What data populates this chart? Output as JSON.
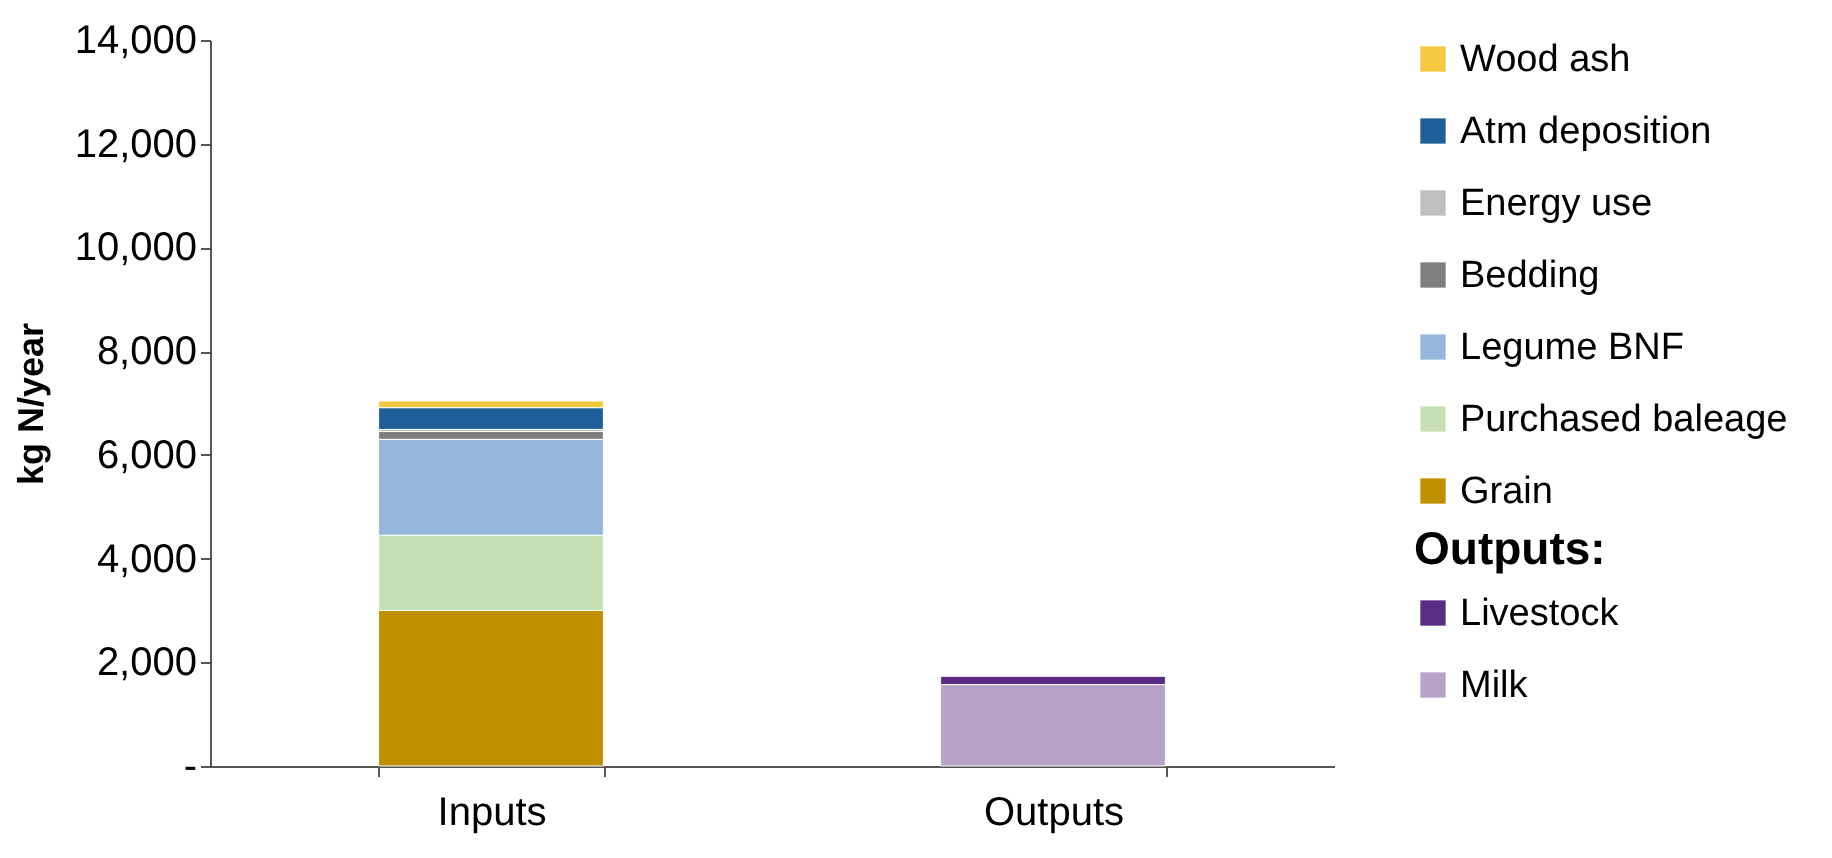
{
  "chart_data": {
    "type": "bar",
    "stacked": true,
    "ylabel": "kg N/year",
    "legend_title": "Outputs:",
    "legend": "right",
    "categories": [
      "Inputs",
      "Outputs"
    ],
    "ylim": [
      0,
      14000
    ],
    "yticks": [
      {
        "value": 0,
        "label": "-"
      },
      {
        "value": 2000,
        "label": "2,000"
      },
      {
        "value": 4000,
        "label": "4,000"
      },
      {
        "value": 6000,
        "label": "6,000"
      },
      {
        "value": 8000,
        "label": "8,000"
      },
      {
        "value": 10000,
        "label": "10,000"
      },
      {
        "value": 12000,
        "label": "12,000"
      },
      {
        "value": 14000,
        "label": "14,000"
      }
    ],
    "series": [
      {
        "name": "Grain",
        "color": "#bf9000",
        "values": [
          3000,
          null
        ]
      },
      {
        "name": "Purchased baleage",
        "color": "#c6e0b4",
        "values": [
          1450,
          null
        ]
      },
      {
        "name": "Legume BNF",
        "color": "#95b7dc",
        "values": [
          1850,
          null
        ]
      },
      {
        "name": "Bedding",
        "color": "#7f7f7f",
        "values": [
          150,
          null
        ]
      },
      {
        "name": "Energy use",
        "color": "#bfbfbf",
        "values": [
          40,
          null
        ]
      },
      {
        "name": "Atm deposition",
        "color": "#1f5f99",
        "values": [
          420,
          null
        ]
      },
      {
        "name": "Wood ash",
        "color": "#f5c842",
        "values": [
          130,
          null
        ]
      },
      {
        "name": "Milk",
        "color": "#b7a3c8",
        "values": [
          null,
          1570
        ]
      },
      {
        "name": "Livestock",
        "color": "#5b2c83",
        "values": [
          null,
          160
        ]
      }
    ]
  }
}
